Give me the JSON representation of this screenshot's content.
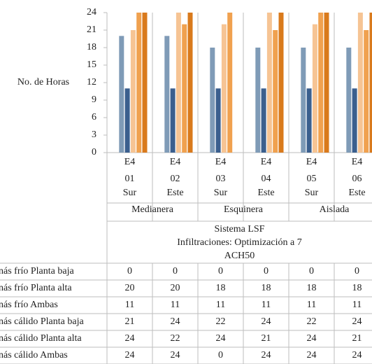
{
  "chart_data": {
    "type": "bar",
    "y_label": "No. de Horas",
    "categories": [
      "E4 01",
      "E4 02",
      "E4 03",
      "E4 04",
      "E4 05",
      "E4 06"
    ],
    "orientations": [
      "Sur",
      "Este",
      "Sur",
      "Este",
      "Sur",
      "Este"
    ],
    "groups": [
      "Medianera",
      "Esquinera",
      "Aislada"
    ],
    "table_header": [
      "Sistema LSF",
      "Infiltraciones: Optimización a 7",
      "ACH50"
    ],
    "ylim": [
      0,
      24
    ],
    "yticks": [
      0,
      3,
      6,
      9,
      12,
      15,
      18,
      21,
      24
    ],
    "series": [
      {
        "name": "nás frío Planta baja",
        "color": "#a5a5a5",
        "values": [
          0,
          0,
          0,
          0,
          0,
          0
        ]
      },
      {
        "name": "nás frío Planta alta",
        "color": "#7f9bb7",
        "values": [
          20,
          20,
          18,
          18,
          18,
          18
        ]
      },
      {
        "name": "nás frío Ambas",
        "color": "#3b5f8e",
        "values": [
          11,
          11,
          11,
          11,
          11,
          11
        ]
      },
      {
        "name": "nás cálido Planta baja",
        "color": "#f6c494",
        "values": [
          21,
          24,
          22,
          24,
          22,
          24
        ]
      },
      {
        "name": "nás cálido Planta alta",
        "color": "#f0a14f",
        "values": [
          24,
          22,
          24,
          21,
          24,
          21
        ]
      },
      {
        "name": "nás cálido Ambas",
        "color": "#d97a1c",
        "values": [
          24,
          24,
          0,
          24,
          24,
          24
        ]
      }
    ]
  }
}
